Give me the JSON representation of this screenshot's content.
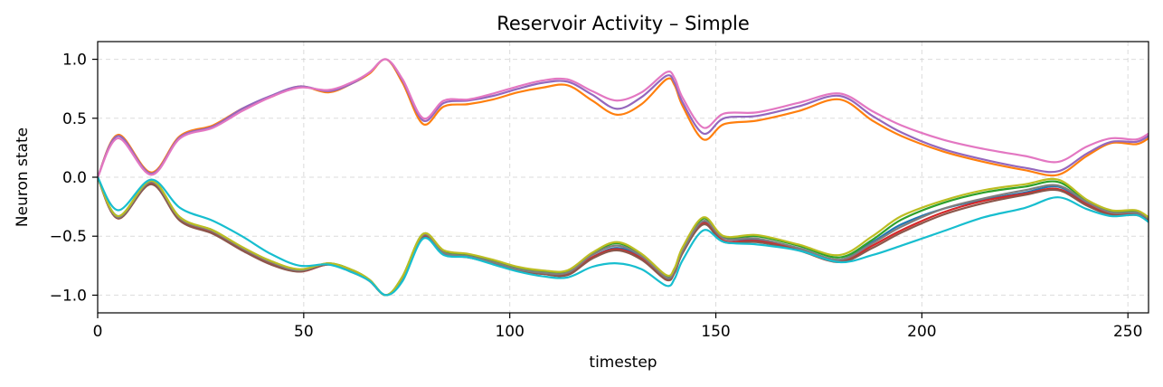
{
  "chart_data": {
    "type": "line",
    "title": "Reservoir Activity – Simple",
    "xlabel": "timestep",
    "ylabel": "Neuron state",
    "xlim": [
      0,
      255
    ],
    "ylim": [
      -1.15,
      1.15
    ],
    "x_ticks": [
      0,
      50,
      100,
      150,
      200,
      250
    ],
    "y_ticks": [
      1.0,
      0.5,
      0.0,
      -0.5,
      -1.0
    ],
    "x_tick_labels": [
      "0",
      "50",
      "100",
      "150",
      "200",
      "250"
    ],
    "y_tick_labels": [
      "1.0",
      "0.5",
      "0.0",
      "−0.5",
      "−1.0"
    ],
    "grid": true,
    "x": [
      0,
      5,
      13,
      20,
      28,
      35,
      42,
      49,
      56,
      62,
      66,
      70,
      74,
      79,
      84,
      90,
      96,
      102,
      108,
      114,
      120,
      126,
      132,
      138,
      140,
      142,
      147,
      152,
      160,
      170,
      180,
      188,
      195,
      205,
      215,
      225,
      233,
      240,
      246,
      252,
      255
    ],
    "series": [
      {
        "color": "#1f77b4",
        "values": [
          0.0,
          -0.33,
          -0.04,
          -0.34,
          -0.46,
          -0.6,
          -0.72,
          -0.79,
          -0.74,
          -0.8,
          -0.88,
          -1.0,
          -0.85,
          -0.5,
          -0.64,
          -0.67,
          -0.72,
          -0.78,
          -0.81,
          -0.82,
          -0.68,
          -0.6,
          -0.68,
          -0.86,
          -0.8,
          -0.62,
          -0.38,
          -0.52,
          -0.53,
          -0.6,
          -0.7,
          -0.55,
          -0.4,
          -0.27,
          -0.19,
          -0.13,
          -0.08,
          -0.22,
          -0.3,
          -0.3,
          -0.35
        ]
      },
      {
        "color": "#ff7f0e",
        "values": [
          0.0,
          0.36,
          0.04,
          0.35,
          0.44,
          0.58,
          0.68,
          0.77,
          0.72,
          0.8,
          0.88,
          1.0,
          0.8,
          0.45,
          0.6,
          0.62,
          0.66,
          0.72,
          0.76,
          0.78,
          0.65,
          0.53,
          0.62,
          0.83,
          0.78,
          0.6,
          0.32,
          0.45,
          0.48,
          0.56,
          0.66,
          0.48,
          0.35,
          0.22,
          0.13,
          0.06,
          0.02,
          0.18,
          0.29,
          0.28,
          0.33
        ]
      },
      {
        "color": "#2ca02c",
        "values": [
          0.0,
          -0.34,
          -0.03,
          -0.35,
          -0.45,
          -0.6,
          -0.71,
          -0.79,
          -0.73,
          -0.79,
          -0.87,
          -1.0,
          -0.84,
          -0.48,
          -0.63,
          -0.66,
          -0.71,
          -0.77,
          -0.8,
          -0.8,
          -0.65,
          -0.56,
          -0.66,
          -0.84,
          -0.78,
          -0.6,
          -0.35,
          -0.51,
          -0.5,
          -0.58,
          -0.68,
          -0.53,
          -0.36,
          -0.22,
          -0.13,
          -0.08,
          -0.04,
          -0.2,
          -0.29,
          -0.29,
          -0.34
        ]
      },
      {
        "color": "#d62728",
        "values": [
          0.0,
          -0.35,
          -0.05,
          -0.36,
          -0.47,
          -0.61,
          -0.73,
          -0.8,
          -0.74,
          -0.8,
          -0.88,
          -1.0,
          -0.86,
          -0.5,
          -0.65,
          -0.68,
          -0.73,
          -0.79,
          -0.82,
          -0.82,
          -0.68,
          -0.61,
          -0.69,
          -0.87,
          -0.8,
          -0.63,
          -0.39,
          -0.54,
          -0.54,
          -0.61,
          -0.71,
          -0.58,
          -0.45,
          -0.3,
          -0.2,
          -0.14,
          -0.1,
          -0.23,
          -0.31,
          -0.31,
          -0.36
        ]
      },
      {
        "color": "#9467bd",
        "values": [
          0.0,
          0.35,
          0.03,
          0.34,
          0.43,
          0.58,
          0.69,
          0.77,
          0.73,
          0.8,
          0.89,
          1.0,
          0.82,
          0.48,
          0.63,
          0.65,
          0.69,
          0.75,
          0.8,
          0.81,
          0.7,
          0.58,
          0.68,
          0.86,
          0.8,
          0.63,
          0.37,
          0.5,
          0.52,
          0.6,
          0.69,
          0.52,
          0.38,
          0.24,
          0.15,
          0.08,
          0.05,
          0.2,
          0.3,
          0.3,
          0.35
        ]
      },
      {
        "color": "#8c564b",
        "values": [
          0.0,
          -0.35,
          -0.06,
          -0.37,
          -0.48,
          -0.62,
          -0.74,
          -0.8,
          -0.74,
          -0.81,
          -0.88,
          -1.0,
          -0.86,
          -0.51,
          -0.65,
          -0.68,
          -0.73,
          -0.79,
          -0.82,
          -0.83,
          -0.69,
          -0.62,
          -0.7,
          -0.87,
          -0.81,
          -0.64,
          -0.4,
          -0.55,
          -0.55,
          -0.62,
          -0.72,
          -0.6,
          -0.47,
          -0.32,
          -0.22,
          -0.15,
          -0.11,
          -0.24,
          -0.32,
          -0.32,
          -0.36
        ]
      },
      {
        "color": "#e377c2",
        "values": [
          0.0,
          0.33,
          0.02,
          0.33,
          0.42,
          0.56,
          0.68,
          0.76,
          0.74,
          0.81,
          0.89,
          1.0,
          0.83,
          0.5,
          0.65,
          0.66,
          0.71,
          0.77,
          0.82,
          0.83,
          0.73,
          0.65,
          0.72,
          0.89,
          0.84,
          0.67,
          0.42,
          0.54,
          0.55,
          0.63,
          0.71,
          0.56,
          0.44,
          0.32,
          0.24,
          0.18,
          0.13,
          0.26,
          0.33,
          0.32,
          0.37
        ]
      },
      {
        "color": "#7f7f7f",
        "values": [
          0.0,
          -0.34,
          -0.04,
          -0.35,
          -0.46,
          -0.6,
          -0.72,
          -0.79,
          -0.73,
          -0.8,
          -0.88,
          -1.0,
          -0.85,
          -0.49,
          -0.64,
          -0.67,
          -0.72,
          -0.78,
          -0.81,
          -0.81,
          -0.66,
          -0.58,
          -0.67,
          -0.85,
          -0.79,
          -0.62,
          -0.37,
          -0.52,
          -0.52,
          -0.6,
          -0.7,
          -0.56,
          -0.42,
          -0.27,
          -0.18,
          -0.11,
          -0.07,
          -0.21,
          -0.3,
          -0.3,
          -0.35
        ]
      },
      {
        "color": "#bcbd22",
        "values": [
          0.0,
          -0.33,
          -0.03,
          -0.34,
          -0.45,
          -0.59,
          -0.71,
          -0.78,
          -0.73,
          -0.79,
          -0.87,
          -1.0,
          -0.84,
          -0.48,
          -0.62,
          -0.65,
          -0.7,
          -0.76,
          -0.79,
          -0.79,
          -0.64,
          -0.55,
          -0.65,
          -0.83,
          -0.77,
          -0.59,
          -0.34,
          -0.5,
          -0.49,
          -0.57,
          -0.66,
          -0.5,
          -0.33,
          -0.2,
          -0.11,
          -0.06,
          -0.02,
          -0.19,
          -0.28,
          -0.28,
          -0.34
        ]
      },
      {
        "color": "#17becf",
        "values": [
          0.0,
          -0.28,
          -0.02,
          -0.26,
          -0.37,
          -0.5,
          -0.65,
          -0.75,
          -0.74,
          -0.81,
          -0.88,
          -1.0,
          -0.88,
          -0.52,
          -0.66,
          -0.68,
          -0.74,
          -0.8,
          -0.84,
          -0.85,
          -0.76,
          -0.73,
          -0.78,
          -0.92,
          -0.86,
          -0.7,
          -0.45,
          -0.55,
          -0.57,
          -0.62,
          -0.72,
          -0.66,
          -0.58,
          -0.46,
          -0.34,
          -0.26,
          -0.17,
          -0.27,
          -0.33,
          -0.32,
          -0.38
        ]
      }
    ]
  }
}
